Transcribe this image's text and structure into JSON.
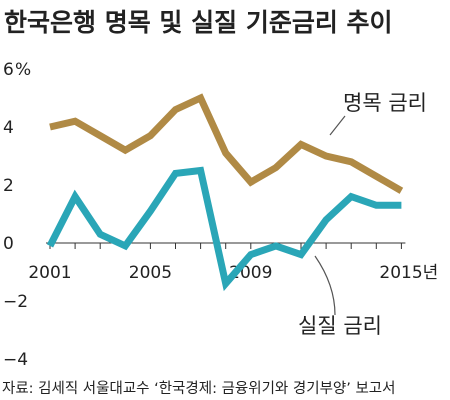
{
  "chart_data": {
    "type": "line",
    "title": "한국은행 명목 및 실질 기준금리 추이",
    "y_unit": "%",
    "xlim": [
      2001,
      2016
    ],
    "ylim": [
      -4,
      6
    ],
    "y_ticks": [
      "6",
      "4",
      "2",
      "0",
      "−2",
      "−4"
    ],
    "x_ticks": [
      "2001",
      "2005",
      "2009",
      "2015년"
    ],
    "series": [
      {
        "name": "명목 금리",
        "color": "#b08a45",
        "x": [
          2001,
          2002,
          2003,
          2004,
          2005,
          2006,
          2007,
          2008,
          2009,
          2010,
          2011,
          2012,
          2013,
          2014,
          2015
        ],
        "values": [
          4.0,
          4.2,
          3.7,
          3.2,
          3.7,
          4.6,
          5.0,
          3.1,
          2.1,
          2.6,
          3.4,
          3.0,
          2.8,
          2.3,
          1.8
        ]
      },
      {
        "name": "실질 금리",
        "color": "#2aa6b7",
        "x": [
          2001,
          2002,
          2003,
          2004,
          2005,
          2006,
          2007,
          2008,
          2009,
          2010,
          2011,
          2012,
          2013,
          2014,
          2015
        ],
        "values": [
          -0.1,
          1.6,
          0.3,
          -0.1,
          1.1,
          2.4,
          2.5,
          -1.4,
          -0.4,
          -0.1,
          -0.4,
          0.8,
          1.6,
          1.3,
          1.3
        ]
      }
    ],
    "source": "자료: 김세직 서울대교수 ‘한국경제: 금융위기와 경기부양’ 보고서"
  }
}
